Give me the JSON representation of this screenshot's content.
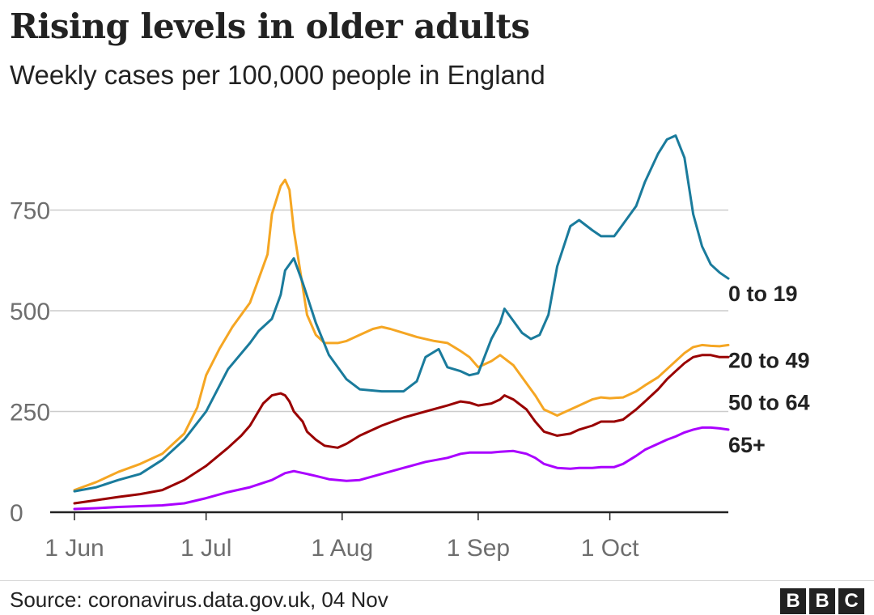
{
  "header": {
    "title": "Rising levels in older adults",
    "subtitle": "Weekly cases per 100,000 people in England"
  },
  "footer": {
    "source": "Source: coronavirus.data.gov.uk, 04 Nov",
    "logo_letters": [
      "B",
      "B",
      "C"
    ]
  },
  "chart_data": {
    "type": "line",
    "title": "Rising levels in older adults",
    "subtitle": "Weekly cases per 100,000 people in England",
    "xlabel": "",
    "ylabel": "",
    "ylim": [
      0,
      950
    ],
    "yticks": [
      0,
      250,
      500,
      750
    ],
    "ytick_labels": [
      "0",
      "250",
      "500",
      "750"
    ],
    "xlim": [
      0,
      149
    ],
    "xticks": [
      0,
      30,
      61,
      92,
      122
    ],
    "xtick_labels": [
      "1 Jun",
      "1 Jul",
      "1 Aug",
      "1 Sep",
      "1 Oct"
    ],
    "x_unit": "days since 1 Jun",
    "grid": "horizontal",
    "legend": "direct labels at right end of lines",
    "series": [
      {
        "name": "0 to 19",
        "color": "#1a7b9c",
        "x": [
          0,
          5,
          10,
          15,
          20,
          25,
          30,
          35,
          40,
          42,
          45,
          47,
          48,
          50,
          52,
          55,
          58,
          62,
          65,
          70,
          75,
          78,
          80,
          83,
          85,
          88,
          90,
          92,
          95,
          97,
          98,
          100,
          102,
          104,
          106,
          108,
          110,
          113,
          115,
          118,
          120,
          123,
          125,
          128,
          130,
          133,
          135,
          137,
          139,
          141,
          143,
          145,
          147,
          149
        ],
        "values": [
          52,
          62,
          80,
          95,
          130,
          180,
          250,
          355,
          420,
          450,
          480,
          540,
          600,
          630,
          570,
          470,
          390,
          330,
          305,
          300,
          300,
          325,
          385,
          405,
          360,
          350,
          340,
          345,
          430,
          470,
          505,
          475,
          445,
          430,
          440,
          490,
          610,
          710,
          725,
          700,
          685,
          685,
          715,
          760,
          820,
          890,
          925,
          935,
          880,
          740,
          660,
          615,
          595,
          580
        ]
      },
      {
        "name": "20 to 49",
        "color": "#f5a623",
        "x": [
          0,
          5,
          10,
          15,
          20,
          25,
          28,
          30,
          33,
          36,
          38,
          40,
          42,
          44,
          45,
          47,
          48,
          49,
          50,
          52,
          53,
          55,
          57,
          58,
          60,
          62,
          65,
          68,
          70,
          72,
          75,
          78,
          80,
          82,
          85,
          88,
          90,
          92,
          95,
          97,
          100,
          103,
          105,
          107,
          110,
          112,
          115,
          118,
          120,
          122,
          125,
          128,
          130,
          133,
          135,
          137,
          139,
          141,
          143,
          145,
          147,
          149
        ],
        "values": [
          55,
          75,
          100,
          120,
          145,
          195,
          260,
          340,
          405,
          460,
          490,
          520,
          580,
          640,
          740,
          810,
          825,
          800,
          700,
          560,
          490,
          440,
          420,
          420,
          420,
          425,
          440,
          455,
          460,
          455,
          445,
          435,
          430,
          425,
          420,
          400,
          385,
          360,
          375,
          390,
          365,
          320,
          290,
          255,
          240,
          250,
          265,
          280,
          285,
          283,
          285,
          300,
          315,
          335,
          355,
          375,
          395,
          410,
          415,
          413,
          412,
          415
        ]
      },
      {
        "name": "50 to 64",
        "color": "#990000",
        "x": [
          0,
          5,
          10,
          15,
          20,
          25,
          30,
          35,
          38,
          40,
          43,
          45,
          47,
          48,
          49,
          50,
          52,
          53,
          55,
          57,
          60,
          62,
          65,
          70,
          75,
          80,
          85,
          88,
          90,
          92,
          95,
          97,
          98,
          100,
          103,
          105,
          107,
          110,
          113,
          115,
          118,
          120,
          123,
          125,
          128,
          130,
          133,
          135,
          137,
          139,
          141,
          143,
          145,
          147,
          149
        ],
        "values": [
          22,
          30,
          38,
          45,
          55,
          80,
          115,
          160,
          190,
          215,
          270,
          290,
          295,
          290,
          275,
          250,
          225,
          200,
          180,
          165,
          160,
          170,
          190,
          215,
          235,
          250,
          265,
          275,
          272,
          265,
          270,
          280,
          290,
          280,
          255,
          225,
          200,
          190,
          195,
          205,
          215,
          225,
          225,
          230,
          255,
          275,
          305,
          330,
          350,
          370,
          385,
          390,
          390,
          385,
          385
        ]
      },
      {
        "name": "65+",
        "color": "#aa00ff",
        "x": [
          0,
          5,
          10,
          15,
          20,
          25,
          30,
          35,
          40,
          45,
          48,
          50,
          53,
          55,
          58,
          62,
          65,
          70,
          75,
          80,
          85,
          88,
          90,
          92,
          95,
          97,
          100,
          103,
          105,
          107,
          110,
          113,
          115,
          118,
          120,
          123,
          125,
          128,
          130,
          133,
          135,
          137,
          139,
          141,
          143,
          145,
          147,
          149
        ],
        "values": [
          8,
          10,
          13,
          15,
          17,
          22,
          35,
          50,
          62,
          80,
          97,
          102,
          95,
          90,
          82,
          78,
          80,
          95,
          110,
          125,
          135,
          145,
          148,
          148,
          148,
          150,
          152,
          145,
          135,
          120,
          110,
          108,
          110,
          110,
          112,
          112,
          120,
          140,
          155,
          170,
          180,
          188,
          198,
          205,
          210,
          210,
          208,
          205
        ]
      }
    ]
  }
}
